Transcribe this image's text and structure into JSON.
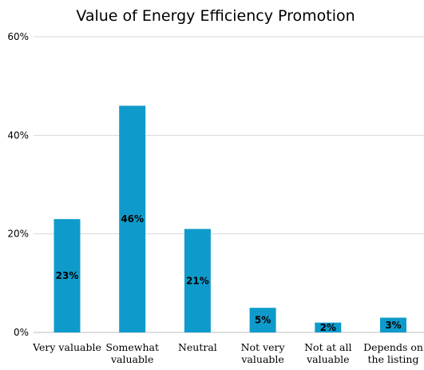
{
  "chart_data": {
    "type": "bar",
    "title": "Value of Energy Efficiency Promotion",
    "xlabel": "",
    "ylabel": "",
    "categories": [
      [
        "Very valuable"
      ],
      [
        "Somewhat",
        "valuable"
      ],
      [
        "Neutral"
      ],
      [
        "Not very",
        "valuable"
      ],
      [
        "Not at all",
        "valuable"
      ],
      [
        "Depends on",
        "the listing"
      ]
    ],
    "values": [
      23,
      46,
      21,
      5,
      2,
      3
    ],
    "data_labels": [
      "23%",
      "46%",
      "21%",
      "5%",
      "2%",
      "3%"
    ],
    "y_ticks": [
      0,
      20,
      40,
      60
    ],
    "y_tick_labels": [
      "0%",
      "20%",
      "40%",
      "60%"
    ],
    "ylim": [
      0,
      60
    ],
    "grid": true,
    "legend": "none",
    "colors": {
      "bar": "#0E9BCB",
      "grid": "#D9D9D9",
      "axis": "#BFBFBF"
    }
  }
}
